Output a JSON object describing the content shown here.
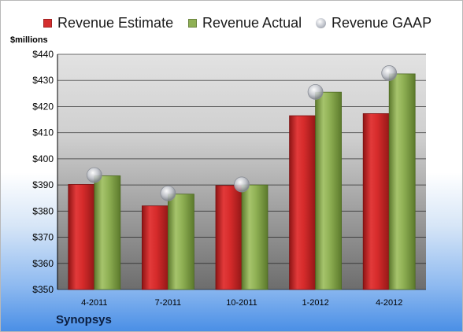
{
  "chart_data": {
    "type": "bar",
    "company": "Synopsys",
    "ylabel": "$millions",
    "ylim": [
      350,
      440
    ],
    "yticks": [
      "$350",
      "$360",
      "$370",
      "$380",
      "$390",
      "$400",
      "$410",
      "$420",
      "$430",
      "$440"
    ],
    "ytick_values": [
      350,
      360,
      370,
      380,
      390,
      400,
      410,
      420,
      430,
      440
    ],
    "categories": [
      "4-2011",
      "7-2011",
      "10-2011",
      "1-2012",
      "4-2012"
    ],
    "series": [
      {
        "name": "Revenue Estimate",
        "values": [
          390.2,
          382.0,
          389.8,
          416.5,
          417.3
        ],
        "color": "#cc2a2a",
        "marker": "bar"
      },
      {
        "name": "Revenue Actual",
        "values": [
          393.5,
          386.5,
          390.0,
          425.5,
          432.5
        ],
        "color": "#8aad52",
        "marker": "bar"
      },
      {
        "name": "Revenue GAAP",
        "values": [
          393.8,
          386.8,
          390.2,
          425.6,
          432.8
        ],
        "color": "#c4c8d0",
        "marker": "circle"
      }
    ],
    "grid": true,
    "legend_position": "top"
  }
}
